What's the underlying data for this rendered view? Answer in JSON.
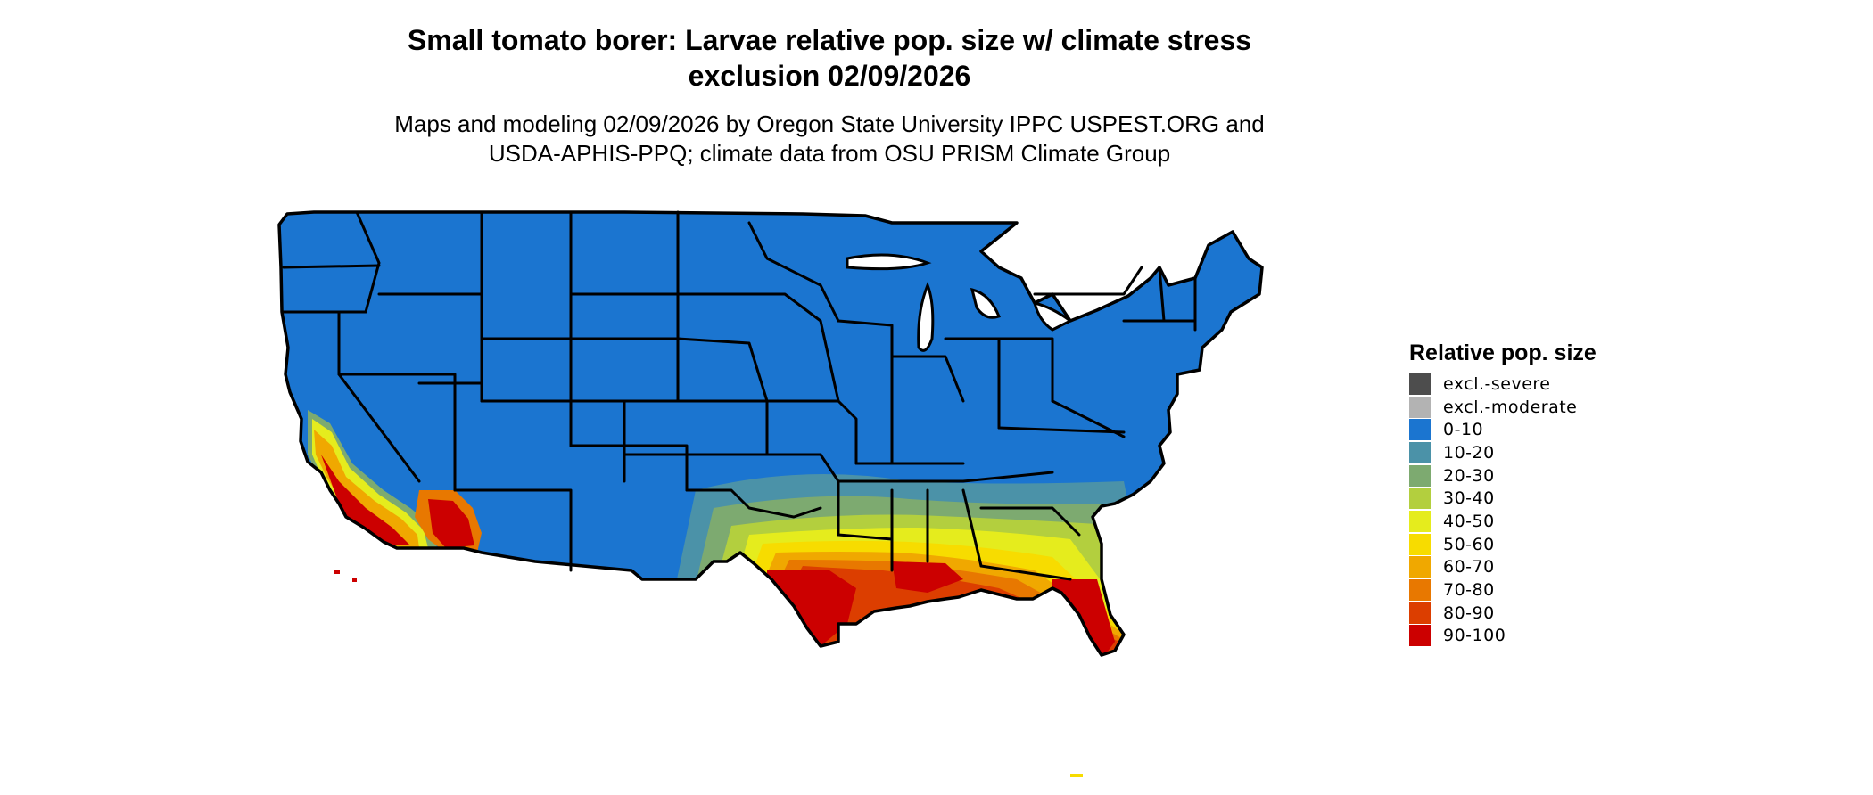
{
  "header": {
    "title_line_1": "Small tomato borer: Larvae relative pop. size w/ climate stress",
    "title_line_2": "exclusion 02/09/2026",
    "subtitle_line_1": "Maps and modeling 02/09/2026 by Oregon State University IPPC USPEST.ORG and",
    "subtitle_line_2": "USDA-APHIS-PPQ; climate data from OSU PRISM Climate Group"
  },
  "legend": {
    "title": "Relative pop. size",
    "items": [
      {
        "label": "excl.-severe",
        "color": "#4d4d4d"
      },
      {
        "label": "excl.-moderate",
        "color": "#b3b3b3"
      },
      {
        "label": "0-10",
        "color": "#1b75d0"
      },
      {
        "label": "10-20",
        "color": "#4b92a8"
      },
      {
        "label": "20-30",
        "color": "#7daa70"
      },
      {
        "label": "30-40",
        "color": "#b3cf3e"
      },
      {
        "label": "40-50",
        "color": "#e5ec1d"
      },
      {
        "label": "50-60",
        "color": "#f7dc00"
      },
      {
        "label": "60-70",
        "color": "#f0a800"
      },
      {
        "label": "70-80",
        "color": "#e87800"
      },
      {
        "label": "80-90",
        "color": "#dc3e00"
      },
      {
        "label": "90-100",
        "color": "#cc0000"
      }
    ]
  },
  "map": {
    "region": "Contiguous United States",
    "base_color": "#1b75d0",
    "border_color": "#000000"
  }
}
